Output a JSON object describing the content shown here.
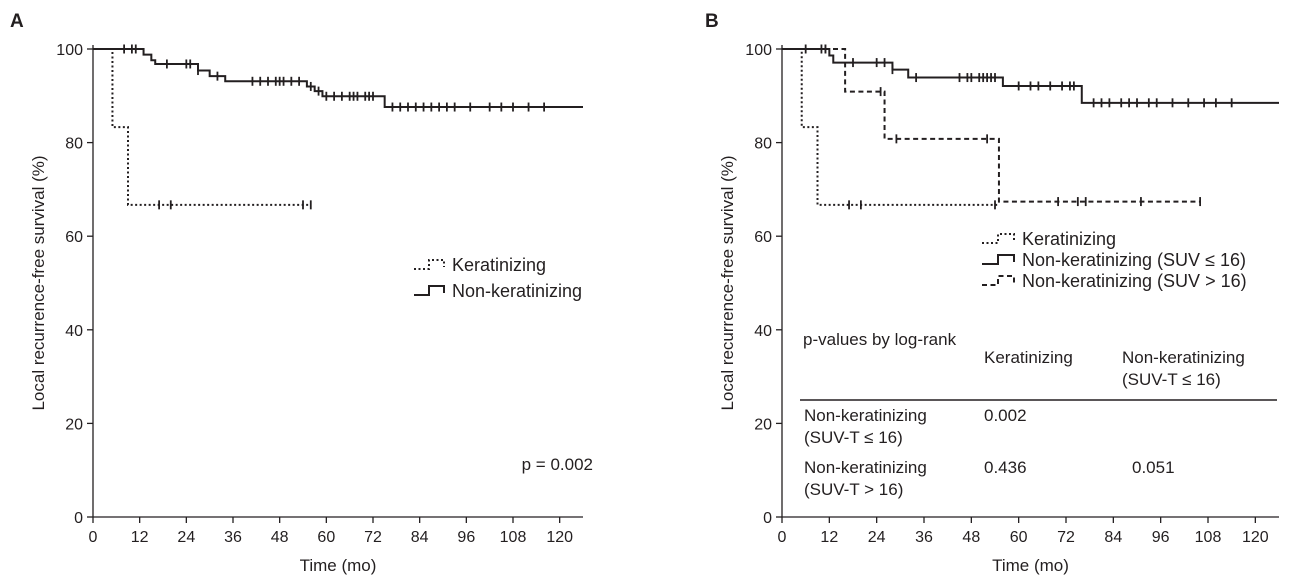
{
  "chart_data": [
    {
      "panel": "A",
      "type": "line",
      "subtype": "kaplan-meier",
      "xlabel": "Time (mo)",
      "ylabel": "Local recurrence-free survival (%)",
      "xlim": [
        0,
        126
      ],
      "ylim": [
        0,
        100
      ],
      "xticks": [
        "0",
        "12",
        "24",
        "36",
        "48",
        "60",
        "72",
        "84",
        "96",
        "108",
        "120"
      ],
      "yticks": [
        "0",
        "20",
        "40",
        "60",
        "80",
        "100"
      ],
      "legend_position": "right-middle",
      "annotation": "p = 0.002",
      "series": [
        {
          "name": "Keratinizing",
          "style": "dotted",
          "steps": [
            [
              0,
              100
            ],
            [
              5,
              83.3
            ],
            [
              9,
              66.7
            ],
            [
              56,
              66.7
            ]
          ],
          "censor_times": [
            17,
            20,
            54,
            56
          ]
        },
        {
          "name": "Non-keratinizing",
          "style": "solid",
          "steps": [
            [
              0,
              100
            ],
            [
              13,
              98.8
            ],
            [
              15,
              97.6
            ],
            [
              16,
              96.8
            ],
            [
              27,
              95.4
            ],
            [
              30,
              94.2
            ],
            [
              34,
              93.1
            ],
            [
              55,
              92.0
            ],
            [
              57,
              91.0
            ],
            [
              59,
              89.9
            ],
            [
              75,
              87.6
            ],
            [
              126,
              87.6
            ]
          ],
          "censor_times": [
            8,
            10,
            11,
            19,
            24,
            25,
            27,
            32,
            41,
            43,
            45,
            47,
            48,
            49,
            51,
            53,
            56,
            58,
            60,
            62,
            64,
            66,
            67,
            68,
            70,
            71,
            72,
            77,
            79,
            81,
            83,
            85,
            87,
            89,
            91,
            93,
            97,
            102,
            105,
            108,
            112,
            116
          ]
        }
      ]
    },
    {
      "panel": "B",
      "type": "line",
      "subtype": "kaplan-meier",
      "xlabel": "Time (mo)",
      "ylabel": "Local recurrence-free survival (%)",
      "xlim": [
        0,
        126
      ],
      "ylim": [
        0,
        100
      ],
      "xticks": [
        "0",
        "12",
        "24",
        "36",
        "48",
        "60",
        "72",
        "84",
        "96",
        "108",
        "120"
      ],
      "yticks": [
        "0",
        "20",
        "40",
        "60",
        "80",
        "100"
      ],
      "legend_position": "right-middle",
      "series": [
        {
          "name": "Keratinizing",
          "style": "dotted",
          "steps": [
            [
              0,
              100
            ],
            [
              5,
              83.3
            ],
            [
              9,
              66.7
            ],
            [
              55,
              66.7
            ]
          ],
          "censor_times": [
            17,
            20,
            54
          ]
        },
        {
          "name": "Non-keratinizing (SUV ≤ 16)",
          "style": "solid",
          "steps": [
            [
              0,
              100
            ],
            [
              12,
              98.6
            ],
            [
              13,
              97.1
            ],
            [
              28,
              95.6
            ],
            [
              32,
              93.9
            ],
            [
              56,
              92.1
            ],
            [
              76,
              88.5
            ],
            [
              126,
              88.5
            ]
          ],
          "censor_times": [
            6,
            10,
            11,
            18,
            24,
            26,
            28,
            34,
            45,
            47,
            48,
            50,
            51,
            52,
            53,
            54,
            60,
            63,
            65,
            68,
            71,
            73,
            74,
            79,
            81,
            83,
            86,
            88,
            90,
            93,
            95,
            99,
            103,
            107,
            110,
            114
          ]
        },
        {
          "name": "Non-keratinizing (SUV > 16)",
          "style": "dashed",
          "steps": [
            [
              0,
              100
            ],
            [
              16,
              90.9
            ],
            [
              26,
              80.8
            ],
            [
              55,
              67.4
            ],
            [
              106,
              67.4
            ]
          ],
          "censor_times": [
            11,
            25,
            29,
            52,
            70,
            75,
            77,
            91,
            106
          ]
        }
      ],
      "table": {
        "title": "p-values by log-rank",
        "columns": [
          "Keratinizing",
          "Non-keratinizing\n(SUV-T ≤ 16)"
        ],
        "rows": [
          {
            "label": "Non-keratinizing\n(SUV-T ≤ 16)",
            "values": [
              "0.002",
              ""
            ]
          },
          {
            "label": "Non-keratinizing\n(SUV-T > 16)",
            "values": [
              "0.436",
              "0.051"
            ]
          }
        ]
      }
    }
  ]
}
